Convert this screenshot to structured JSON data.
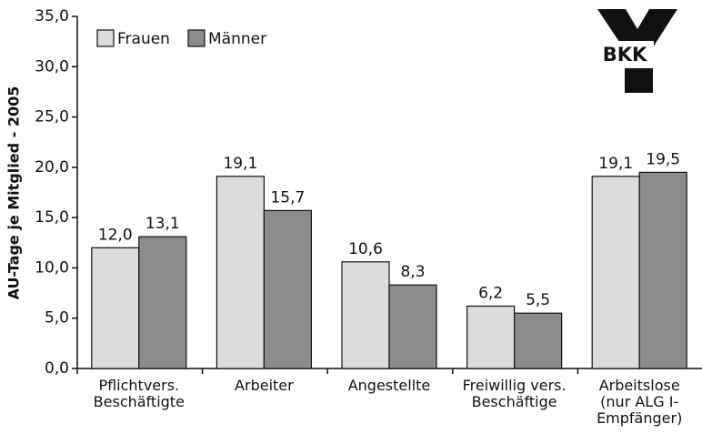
{
  "chart_data": {
    "type": "bar",
    "y_label": "AU-Tage je Mitglied - 2005",
    "categories": [
      "Pflichtvers.\nBeschäftigte",
      "Arbeiter",
      "Angestellte",
      "Freiwillig vers.\nBeschäftige",
      "Arbeitslose\n(nur ALG I-\nEmpfänger)"
    ],
    "series": [
      {
        "name": "Frauen",
        "color": "#dcdcdc",
        "values": [
          12.0,
          19.1,
          10.6,
          6.2,
          19.1
        ],
        "value_labels": [
          "12,0",
          "19,1",
          "10,6",
          "6,2",
          "19,1"
        ]
      },
      {
        "name": "Männer",
        "color": "#8c8c8c",
        "values": [
          13.1,
          15.7,
          8.3,
          5.5,
          19.5
        ],
        "value_labels": [
          "13,1",
          "15,7",
          "8,3",
          "5,5",
          "19,5"
        ]
      }
    ],
    "ylim": [
      0,
      35
    ],
    "yticks": [
      {
        "value": 0,
        "label": "0,0"
      },
      {
        "value": 5,
        "label": "5,0"
      },
      {
        "value": 10,
        "label": "10,0"
      },
      {
        "value": 15,
        "label": "15,0"
      },
      {
        "value": 20,
        "label": "20,0"
      },
      {
        "value": 25,
        "label": "25,0"
      },
      {
        "value": 30,
        "label": "30,0"
      },
      {
        "value": 35,
        "label": "35,0"
      }
    ],
    "legend": "upper left",
    "grid": false
  },
  "logo": "BKK"
}
